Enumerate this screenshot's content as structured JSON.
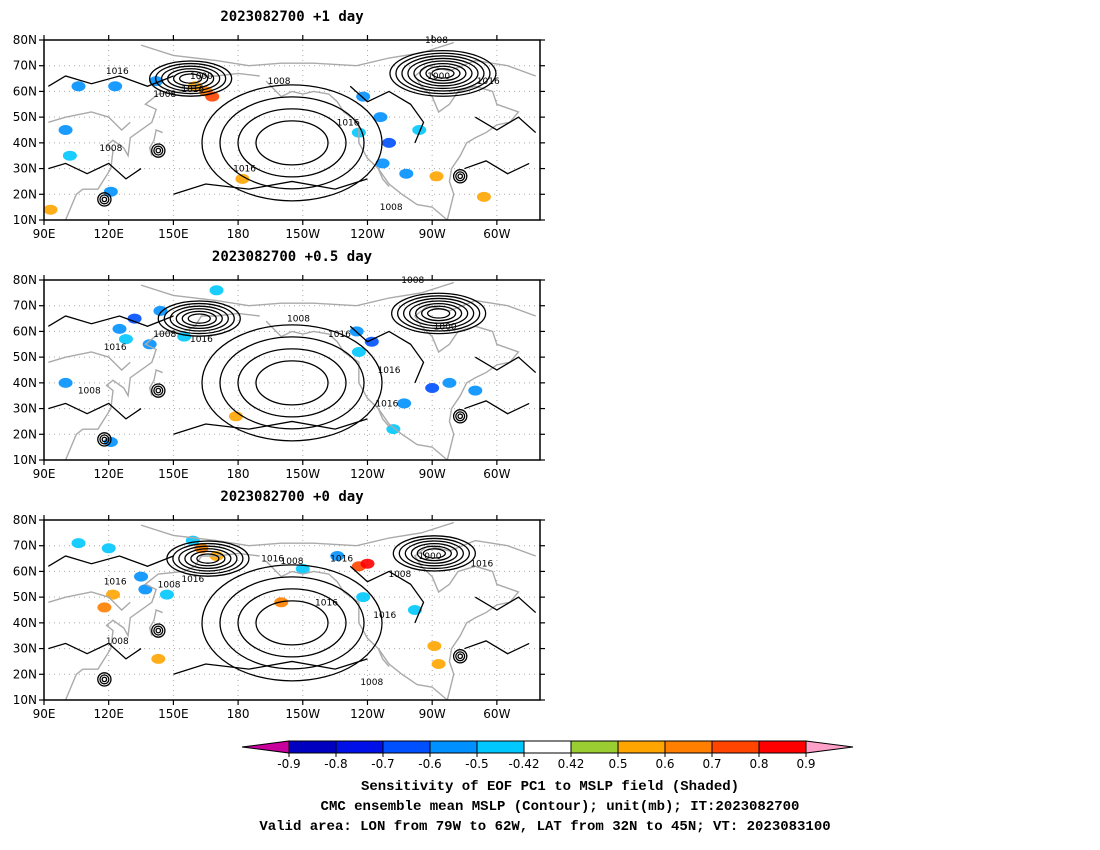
{
  "panels": [
    {
      "title": "2023082700  +1 day",
      "contour_labels": [
        {
          "text": "1016",
          "lon": 124,
          "lat": 68
        },
        {
          "text": "1008",
          "lon": 146,
          "lat": 59
        },
        {
          "text": "1000",
          "lon": 163,
          "lat": 66
        },
        {
          "text": "1016",
          "lon": 159,
          "lat": 61
        },
        {
          "text": "1008",
          "lon": 199,
          "lat": 64
        },
        {
          "text": "1008",
          "lon": 272,
          "lat": 80
        },
        {
          "text": "1000",
          "lon": 273,
          "lat": 66
        },
        {
          "text": "1016",
          "lon": 296,
          "lat": 64
        },
        {
          "text": "1016",
          "lon": 231,
          "lat": 48
        },
        {
          "text": "1008",
          "lon": 121,
          "lat": 38
        },
        {
          "text": "1016",
          "lon": 183,
          "lat": 30
        },
        {
          "text": "1008",
          "lon": 251,
          "lat": 15
        }
      ],
      "shading": [
        {
          "lon": 106,
          "lat": 62,
          "v": -0.6
        },
        {
          "lon": 123,
          "lat": 62,
          "v": -0.6
        },
        {
          "lon": 142,
          "lat": 64,
          "v": -0.6
        },
        {
          "lon": 100,
          "lat": 45,
          "v": -0.6
        },
        {
          "lon": 102,
          "lat": 35,
          "v": -0.5
        },
        {
          "lon": 121,
          "lat": 21,
          "v": -0.6
        },
        {
          "lon": 160,
          "lat": 62,
          "v": 0.5
        },
        {
          "lon": 165,
          "lat": 60,
          "v": 0.6
        },
        {
          "lon": 168,
          "lat": 58,
          "v": 0.7
        },
        {
          "lon": 238,
          "lat": 58,
          "v": -0.6
        },
        {
          "lon": 246,
          "lat": 50,
          "v": -0.6
        },
        {
          "lon": 250,
          "lat": 40,
          "v": -0.7
        },
        {
          "lon": 247,
          "lat": 32,
          "v": -0.6
        },
        {
          "lon": 258,
          "lat": 28,
          "v": -0.6
        },
        {
          "lon": 264,
          "lat": 45,
          "v": -0.5
        },
        {
          "lon": 294,
          "lat": 19,
          "v": 0.5
        },
        {
          "lon": 272,
          "lat": 27,
          "v": 0.5
        },
        {
          "lon": 182,
          "lat": 26,
          "v": 0.5
        },
        {
          "lon": 93,
          "lat": 14,
          "v": 0.5
        },
        {
          "lon": 236,
          "lat": 44,
          "v": -0.5
        }
      ]
    },
    {
      "title": "2023082700  +0.5 day",
      "contour_labels": [
        {
          "text": "1008",
          "lon": 261,
          "lat": 80
        },
        {
          "text": "1008",
          "lon": 208,
          "lat": 65
        },
        {
          "text": "1008",
          "lon": 146,
          "lat": 59
        },
        {
          "text": "1016",
          "lon": 163,
          "lat": 57
        },
        {
          "text": "1016",
          "lon": 123,
          "lat": 54
        },
        {
          "text": "1016",
          "lon": 227,
          "lat": 59
        },
        {
          "text": "1000",
          "lon": 276,
          "lat": 62
        },
        {
          "text": "1016",
          "lon": 250,
          "lat": 45
        },
        {
          "text": "1016",
          "lon": 249,
          "lat": 32
        },
        {
          "text": "1008",
          "lon": 111,
          "lat": 37
        }
      ],
      "shading": [
        {
          "lon": 132,
          "lat": 65,
          "v": -0.7
        },
        {
          "lon": 144,
          "lat": 68,
          "v": -0.6
        },
        {
          "lon": 125,
          "lat": 61,
          "v": -0.6
        },
        {
          "lon": 139,
          "lat": 55,
          "v": -0.6
        },
        {
          "lon": 155,
          "lat": 58,
          "v": -0.5
        },
        {
          "lon": 128,
          "lat": 57,
          "v": -0.5
        },
        {
          "lon": 100,
          "lat": 40,
          "v": -0.6
        },
        {
          "lon": 235,
          "lat": 60,
          "v": -0.6
        },
        {
          "lon": 242,
          "lat": 56,
          "v": -0.7
        },
        {
          "lon": 236,
          "lat": 52,
          "v": -0.5
        },
        {
          "lon": 270,
          "lat": 38,
          "v": -0.7
        },
        {
          "lon": 278,
          "lat": 40,
          "v": -0.6
        },
        {
          "lon": 257,
          "lat": 32,
          "v": -0.6
        },
        {
          "lon": 290,
          "lat": 37,
          "v": -0.6
        },
        {
          "lon": 252,
          "lat": 22,
          "v": -0.5
        },
        {
          "lon": 121,
          "lat": 17,
          "v": -0.6
        },
        {
          "lon": 170,
          "lat": 76,
          "v": -0.5
        },
        {
          "lon": 179,
          "lat": 27,
          "v": 0.5
        }
      ]
    },
    {
      "title": "2023082700  +0 day",
      "contour_labels": [
        {
          "text": "1016",
          "lon": 196,
          "lat": 65
        },
        {
          "text": "1016",
          "lon": 228,
          "lat": 65
        },
        {
          "text": "1008",
          "lon": 205,
          "lat": 64
        },
        {
          "text": "1000",
          "lon": 269,
          "lat": 66
        },
        {
          "text": "1016",
          "lon": 293,
          "lat": 63
        },
        {
          "text": "1008",
          "lon": 255,
          "lat": 59
        },
        {
          "text": "1016",
          "lon": 123,
          "lat": 56
        },
        {
          "text": "1008",
          "lon": 148,
          "lat": 55
        },
        {
          "text": "1016",
          "lon": 159,
          "lat": 57
        },
        {
          "text": "1016",
          "lon": 221,
          "lat": 48
        },
        {
          "text": "1016",
          "lon": 248,
          "lat": 43
        },
        {
          "text": "1008",
          "lon": 124,
          "lat": 33
        },
        {
          "text": "1008",
          "lon": 242,
          "lat": 17
        }
      ],
      "shading": [
        {
          "lon": 106,
          "lat": 71,
          "v": -0.5
        },
        {
          "lon": 120,
          "lat": 69,
          "v": -0.5
        },
        {
          "lon": 159,
          "lat": 72,
          "v": -0.5
        },
        {
          "lon": 135,
          "lat": 58,
          "v": -0.6
        },
        {
          "lon": 137,
          "lat": 53,
          "v": -0.6
        },
        {
          "lon": 147,
          "lat": 51,
          "v": -0.5
        },
        {
          "lon": 118,
          "lat": 46,
          "v": 0.6
        },
        {
          "lon": 122,
          "lat": 51,
          "v": 0.5
        },
        {
          "lon": 163,
          "lat": 69,
          "v": 0.6
        },
        {
          "lon": 170,
          "lat": 66,
          "v": 0.5
        },
        {
          "lon": 236,
          "lat": 62,
          "v": 0.7
        },
        {
          "lon": 240,
          "lat": 63,
          "v": 0.8
        },
        {
          "lon": 226,
          "lat": 66,
          "v": -0.6
        },
        {
          "lon": 210,
          "lat": 61,
          "v": -0.5
        },
        {
          "lon": 262,
          "lat": 45,
          "v": -0.5
        },
        {
          "lon": 238,
          "lat": 50,
          "v": -0.5
        },
        {
          "lon": 273,
          "lat": 24,
          "v": 0.5
        },
        {
          "lon": 271,
          "lat": 31,
          "v": 0.5
        },
        {
          "lon": 200,
          "lat": 48,
          "v": 0.6
        },
        {
          "lon": 143,
          "lat": 26,
          "v": 0.5
        }
      ]
    }
  ],
  "axes": {
    "lon_range": [
      90,
      320
    ],
    "lat_range": [
      10,
      80
    ],
    "x_ticks": [
      {
        "lon": 90,
        "label": "90E"
      },
      {
        "lon": 120,
        "label": "120E"
      },
      {
        "lon": 150,
        "label": "150E"
      },
      {
        "lon": 180,
        "label": "180"
      },
      {
        "lon": 210,
        "label": "150W"
      },
      {
        "lon": 240,
        "label": "120W"
      },
      {
        "lon": 270,
        "label": "90W"
      },
      {
        "lon": 300,
        "label": "60W"
      }
    ],
    "y_ticks": [
      {
        "lat": 10,
        "label": "10N"
      },
      {
        "lat": 20,
        "label": "20N"
      },
      {
        "lat": 30,
        "label": "30N"
      },
      {
        "lat": 40,
        "label": "40N"
      },
      {
        "lat": 50,
        "label": "50N"
      },
      {
        "lat": 60,
        "label": "60N"
      },
      {
        "lat": 70,
        "label": "70N"
      },
      {
        "lat": 80,
        "label": "80N"
      }
    ],
    "gridlines": "dotted"
  },
  "colorbar": {
    "labels": [
      "-0.9",
      "-0.8",
      "-0.7",
      "-0.6",
      "-0.5",
      "-0.42",
      "0.42",
      "0.5",
      "0.6",
      "0.7",
      "0.8",
      "0.9"
    ],
    "colors": [
      "#c8009c",
      "#0000c0",
      "#0010e8",
      "#0050ff",
      "#0090ff",
      "#00c8ff",
      "#ffffff",
      "#9acd32",
      "#ffa500",
      "#ff7f00",
      "#ff4500",
      "#ff0000",
      "#ffa0c8"
    ]
  },
  "caption": [
    "Sensitivity of EOF PC1 to MSLP field (Shaded)",
    "CMC ensemble mean MSLP (Contour); unit(mb); IT:2023082700",
    "Valid area: LON from 79W to 62W, LAT from 32N to 45N; VT: 2023083100"
  ]
}
